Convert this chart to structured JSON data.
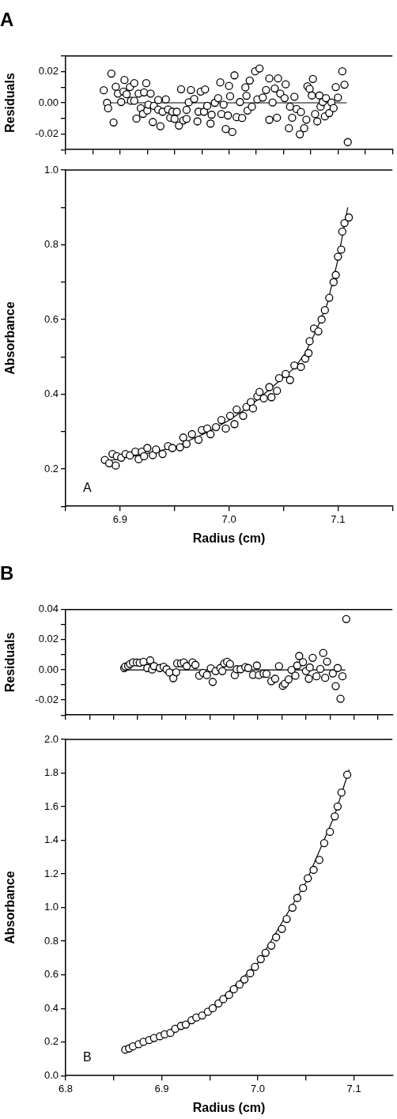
{
  "chart_data": [
    {
      "type": "scatter",
      "title": "A",
      "ylabel": "Residuals",
      "xlim": [
        6.85,
        7.15
      ],
      "xticks": [
        {
          "value": 6.85,
          "label": null
        },
        {
          "value": 6.875,
          "label": null
        },
        {
          "value": 6.9,
          "label": null
        },
        {
          "value": 6.925,
          "label": null
        },
        {
          "value": 6.95,
          "label": null
        },
        {
          "value": 6.975,
          "label": null
        },
        {
          "value": 7.0,
          "label": null
        },
        {
          "value": 7.025,
          "label": null
        },
        {
          "value": 7.05,
          "label": null
        },
        {
          "value": 7.075,
          "label": null
        },
        {
          "value": 7.1,
          "label": null
        },
        {
          "value": 7.125,
          "label": null
        },
        {
          "value": 7.15,
          "label": null
        }
      ],
      "ylim": [
        -0.03,
        0.03
      ],
      "yticks": [
        {
          "value": -0.03,
          "label": null
        },
        -0.02,
        {
          "value": -0.01,
          "label": null
        },
        {
          "value": 0,
          "label": "0.00"
        },
        {
          "value": 0.01,
          "label": null
        },
        0.02,
        {
          "value": 0.03,
          "label": null
        }
      ],
      "tick_labels": "y",
      "marker": "circle",
      "series": [
        {
          "color": "#000000",
          "x": [
            6.885,
            6.888,
            6.889,
            6.892,
            6.894,
            6.896,
            6.898,
            6.901,
            6.903,
            6.904,
            6.906,
            6.909,
            6.91,
            6.913,
            6.913,
            6.915,
            6.917,
            6.919,
            6.921,
            6.922,
            6.924,
            6.925,
            6.926,
            6.928,
            6.93,
            6.931,
            6.935,
            6.935,
            6.937,
            6.939,
            6.942,
            6.944,
            6.946,
            6.948,
            6.95,
            6.952,
            6.954,
            6.956,
            6.958,
            6.961,
            6.961,
            6.963,
            6.965,
            6.968,
            6.971,
            6.972,
            6.974,
            6.977,
            6.978,
            6.98,
            6.983,
            6.984,
            6.987,
            6.99,
            6.992,
            6.993,
            6.995,
            6.997,
            6.999,
            7.0,
            7.001,
            7.003,
            7.005,
            7.007,
            7.01,
            7.012,
            7.015,
            7.016,
            7.017,
            7.019,
            7.021,
            7.024,
            7.026,
            7.028,
            7.031,
            7.034,
            7.037,
            7.037,
            7.04,
            7.042,
            7.044,
            7.045,
            7.047,
            7.051,
            7.052,
            7.055,
            7.056,
            7.058,
            7.06,
            7.062,
            7.065,
            7.066,
            7.069,
            7.071,
            7.072,
            7.074,
            7.076,
            7.077,
            7.079,
            7.081,
            7.083,
            7.084,
            7.086,
            7.088,
            7.089,
            7.092,
            7.094,
            7.096,
            7.098,
            7.1,
            7.104,
            7.106,
            7.109
          ],
          "values": [
            0.008,
            0.0,
            -0.0035,
            0.0187,
            -0.0126,
            0.0103,
            0.0059,
            0.0005,
            0.0072,
            0.0146,
            0.0055,
            0.0101,
            0.0013,
            0.0013,
            0.0126,
            -0.0101,
            0.0059,
            -0.0035,
            -0.0071,
            0.0067,
            0.0126,
            -0.0049,
            -0.0012,
            0.0059,
            -0.0123,
            -0.002,
            0.0018,
            -0.0044,
            -0.015,
            -0.0057,
            0.0022,
            -0.0042,
            -0.0096,
            -0.0057,
            -0.0103,
            -0.0057,
            -0.0146,
            0.0087,
            -0.0113,
            -0.0103,
            -0.0045,
            0.0003,
            0.0082,
            0.0025,
            -0.0119,
            -0.0057,
            0.0072,
            -0.0057,
            0.0086,
            -0.002,
            -0.0133,
            -0.0076,
            0.0,
            0.003,
            0.0131,
            -0.0072,
            -0.0012,
            -0.0168,
            -0.0081,
            0.0108,
            0.0042,
            -0.0187,
            0.0176,
            -0.0092,
            0.0005,
            -0.0097,
            0.0099,
            0.0045,
            -0.005,
            0.0143,
            -0.0025,
            0.0202,
            0.0022,
            0.022,
            0.0034,
            0.0082,
            0.0156,
            -0.0109,
            0.0002,
            0.0092,
            -0.0096,
            0.0156,
            0.0059,
            0.003,
            0.0118,
            -0.0163,
            -0.0025,
            -0.0096,
            0.0039,
            -0.004,
            -0.0202,
            -0.0059,
            -0.0163,
            -0.0108,
            0.0106,
            0.0089,
            0.0047,
            0.0153,
            -0.0072,
            -0.0119,
            0.0047,
            -0.0025,
            0.0005,
            -0.0087,
            0.003,
            -0.0066,
            0.0002,
            -0.0034,
            0.0101,
            0.0034,
            0.0202,
            0.0116,
            -0.0252
          ]
        },
        {
          "type": "line",
          "marker": "none",
          "color": "#000000",
          "x": [
            6.885,
            7.108
          ],
          "values": [
            0,
            0
          ]
        }
      ]
    },
    {
      "type": "scatter",
      "xlabel": "Radius (cm)",
      "ylabel": "Absorbance",
      "annotations": [
        "A"
      ],
      "xlim": [
        6.85,
        7.15
      ],
      "xticks": [
        {
          "value": 6.85,
          "label": null
        },
        6.9,
        {
          "value": 6.95,
          "label": null
        },
        {
          "value": 7.0,
          "label": "7.0"
        },
        {
          "value": 7.05,
          "label": null
        },
        7.1,
        {
          "value": 7.15,
          "label": null
        }
      ],
      "ylim": [
        0.1,
        1.0
      ],
      "yticks": [
        {
          "value": 0.1,
          "label": null
        },
        0.2,
        {
          "value": 0.3,
          "label": null
        },
        0.4,
        {
          "value": 0.5,
          "label": null
        },
        0.6,
        {
          "value": 0.7,
          "label": null
        },
        0.8,
        {
          "value": 0.9,
          "label": null
        },
        {
          "value": 1.0,
          "label": "1.0"
        }
      ],
      "marker": "circle",
      "series": [
        {
          "color": "#000000",
          "x": [
            6.886,
            6.89,
            6.893,
            6.896,
            6.897,
            6.901,
            6.905,
            6.909,
            6.914,
            6.917,
            6.92,
            6.922,
            6.925,
            6.93,
            6.933,
            6.939,
            6.944,
            6.948,
            6.955,
            6.958,
            6.961,
            6.966,
            6.972,
            6.975,
            6.98,
            6.983,
            6.988,
            6.993,
            6.997,
            7.001,
            7.005,
            7.007,
            7.013,
            7.016,
            7.02,
            7.022,
            7.026,
            7.028,
            7.032,
            7.037,
            7.039,
            7.044,
            7.046,
            7.052,
            7.056,
            7.06,
            7.066,
            7.07,
            7.073,
            7.074,
            7.078,
            7.082,
            7.085,
            7.088,
            7.092,
            7.096,
            7.098,
            7.1,
            7.103,
            7.104,
            7.106,
            7.11
          ],
          "values": [
            0.224,
            0.215,
            0.24,
            0.209,
            0.234,
            0.23,
            0.24,
            0.236,
            0.246,
            0.226,
            0.246,
            0.234,
            0.256,
            0.237,
            0.252,
            0.24,
            0.261,
            0.256,
            0.258,
            0.284,
            0.267,
            0.293,
            0.278,
            0.304,
            0.308,
            0.293,
            0.312,
            0.331,
            0.308,
            0.342,
            0.32,
            0.359,
            0.342,
            0.366,
            0.379,
            0.362,
            0.394,
            0.406,
            0.389,
            0.419,
            0.392,
            0.409,
            0.443,
            0.454,
            0.438,
            0.477,
            0.473,
            0.495,
            0.51,
            0.542,
            0.576,
            0.568,
            0.6,
            0.625,
            0.658,
            0.7,
            0.719,
            0.768,
            0.787,
            0.835,
            0.858,
            0.873
          ]
        },
        {
          "type": "line",
          "marker": "none",
          "color": "#000000",
          "x": [
            6.884,
            6.92,
            6.95,
            6.98,
            7.0,
            7.02,
            7.04,
            7.06,
            7.07,
            7.08,
            7.09,
            7.1,
            7.109
          ],
          "values": [
            0.219,
            0.238,
            0.258,
            0.298,
            0.33,
            0.37,
            0.42,
            0.47,
            0.51,
            0.57,
            0.64,
            0.76,
            0.9
          ]
        }
      ]
    },
    {
      "type": "scatter",
      "title": "B",
      "ylabel": "Residuals",
      "xlim": [
        6.8,
        7.14
      ],
      "xticks": [
        {
          "value": 6.8,
          "label": null
        },
        {
          "value": 6.825,
          "label": null
        },
        {
          "value": 6.85,
          "label": null
        },
        {
          "value": 6.875,
          "label": null
        },
        {
          "value": 6.9,
          "label": null
        },
        {
          "value": 6.925,
          "label": null
        },
        {
          "value": 6.95,
          "label": null
        },
        {
          "value": 6.975,
          "label": null
        },
        {
          "value": 7.0,
          "label": null
        },
        {
          "value": 7.025,
          "label": null
        },
        {
          "value": 7.05,
          "label": null
        },
        {
          "value": 7.075,
          "label": null
        },
        {
          "value": 7.1,
          "label": null
        },
        {
          "value": 7.125,
          "label": null
        }
      ],
      "ylim": [
        -0.03,
        0.04
      ],
      "yticks": [
        {
          "value": -0.03,
          "label": null
        },
        -0.02,
        {
          "value": -0.01,
          "label": null
        },
        {
          "value": 0,
          "label": "0.00"
        },
        {
          "value": 0.01,
          "label": null
        },
        0.02,
        {
          "value": 0.03,
          "label": null
        },
        0.04
      ],
      "tick_labels": "y",
      "marker": "circle",
      "series": [
        {
          "color": "#000000",
          "x": [
            6.861,
            6.862,
            6.865,
            6.867,
            6.87,
            6.874,
            6.877,
            6.881,
            6.885,
            6.888,
            6.89,
            6.892,
            6.898,
            6.902,
            6.905,
            6.908,
            6.912,
            6.915,
            6.916,
            6.92,
            6.923,
            6.926,
            6.932,
            6.935,
            6.939,
            6.943,
            6.947,
            6.951,
            6.953,
            6.956,
            6.961,
            6.963,
            6.965,
            6.968,
            6.971,
            6.976,
            6.978,
            6.982,
            6.987,
            6.99,
            6.995,
            6.999,
            7.001,
            7.006,
            7.009,
            7.014,
            7.018,
            7.022,
            7.026,
            7.028,
            7.032,
            7.035,
            7.039,
            7.041,
            7.043,
            7.047,
            7.05,
            7.053,
            7.054,
            7.057,
            7.061,
            7.065,
            7.068,
            7.07,
            7.072,
            7.078,
            7.081,
            7.083,
            7.086,
            7.088,
            7.092
          ],
          "values": [
            0.0012,
            0.0022,
            0.0027,
            0.0039,
            0.0049,
            0.0049,
            0.0047,
            0.0053,
            0.0012,
            0.0063,
            0.0002,
            0.0025,
            0.0012,
            0.002,
            0.0004,
            -0.0018,
            -0.0055,
            -0.0016,
            0.0043,
            0.0043,
            0.0049,
            0.0025,
            0.0049,
            0.0033,
            -0.0039,
            -0.002,
            -0.0035,
            0.001,
            -0.008,
            -0.0008,
            0.0012,
            -0.0008,
            0.0043,
            0.0053,
            0.0039,
            -0.0035,
            0.0004,
            0.0004,
            0.0018,
            0.0012,
            -0.0033,
            0.0029,
            -0.0035,
            -0.0025,
            -0.0027,
            -0.0075,
            -0.0059,
            0.0024,
            -0.0106,
            -0.0092,
            -0.0063,
            0.0,
            -0.0039,
            0.0029,
            0.0092,
            0.0051,
            -0.0008,
            -0.0059,
            0.0016,
            0.008,
            -0.0043,
            0.0006,
            0.0112,
            -0.0053,
            0.0055,
            -0.0024,
            -0.0108,
            0.0012,
            -0.0192,
            -0.0043,
            0.0337
          ]
        },
        {
          "type": "line",
          "marker": "none",
          "color": "#000000",
          "x": [
            6.859,
            7.091
          ],
          "values": [
            0,
            0
          ]
        }
      ]
    },
    {
      "type": "scatter",
      "xlabel": "Radius (cm)",
      "ylabel": "Absorbance",
      "annotations": [
        "B"
      ],
      "xlim": [
        6.8,
        7.14
      ],
      "xticks": [
        6.8,
        {
          "value": 6.85,
          "label": null
        },
        6.9,
        {
          "value": 6.95,
          "label": null
        },
        {
          "value": 7.0,
          "label": "7.0"
        },
        {
          "value": 7.05,
          "label": null
        },
        7.1
      ],
      "ylim": [
        0,
        2.0
      ],
      "yticks": [
        {
          "value": 0,
          "label": "0.0"
        },
        0.2,
        0.4,
        0.6,
        0.8,
        {
          "value": 1.0,
          "label": "1.0"
        },
        1.2,
        1.4,
        1.6,
        1.8,
        {
          "value": 2.0,
          "label": "2.0"
        }
      ],
      "marker": "circle",
      "series": [
        {
          "color": "#000000",
          "x": [
            6.862,
            6.866,
            6.87,
            6.876,
            6.881,
            6.887,
            6.892,
            6.898,
            6.903,
            6.909,
            6.914,
            6.92,
            6.925,
            6.931,
            6.936,
            6.942,
            6.948,
            6.953,
            6.959,
            6.964,
            6.97,
            6.975,
            6.981,
            6.986,
            6.992,
            6.997,
            7.003,
            7.008,
            7.014,
            7.019,
            7.025,
            7.03,
            7.036,
            7.041,
            7.047,
            7.052,
            7.058,
            7.064,
            7.069,
            7.075,
            7.08,
            7.083,
            7.087,
            7.093
          ],
          "values": [
            0.154,
            0.162,
            0.174,
            0.187,
            0.201,
            0.212,
            0.224,
            0.234,
            0.246,
            0.254,
            0.279,
            0.296,
            0.304,
            0.33,
            0.346,
            0.358,
            0.38,
            0.401,
            0.43,
            0.455,
            0.48,
            0.514,
            0.542,
            0.572,
            0.609,
            0.647,
            0.693,
            0.731,
            0.773,
            0.823,
            0.873,
            0.932,
            0.999,
            1.057,
            1.116,
            1.174,
            1.224,
            1.283,
            1.383,
            1.45,
            1.542,
            1.601,
            1.684,
            1.79
          ]
        },
        {
          "type": "line",
          "marker": "none",
          "color": "#000000",
          "x": [
            6.86,
            6.9,
            6.95,
            7.0,
            7.05,
            7.08,
            7.095
          ],
          "values": [
            0.15,
            0.238,
            0.39,
            0.67,
            1.15,
            1.55,
            1.82
          ]
        }
      ]
    }
  ]
}
